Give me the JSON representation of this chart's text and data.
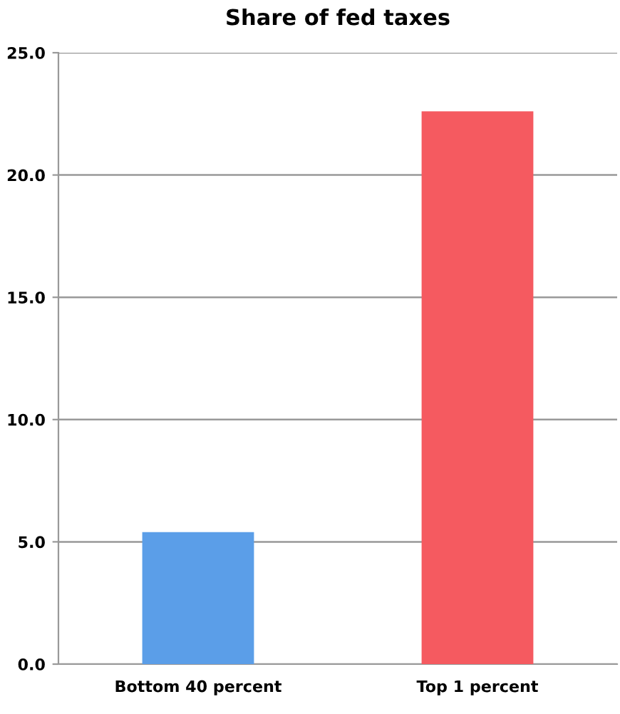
{
  "chart_data": {
    "type": "bar",
    "title": "Share of fed taxes",
    "categories": [
      "Bottom 40 percent",
      "Top 1 percent"
    ],
    "values": [
      5.4,
      22.6
    ],
    "colors": [
      "#5b9ee8",
      "#f55a60"
    ],
    "ylim": [
      0,
      25
    ],
    "yticks": [
      {
        "value": 0,
        "label": "0.0"
      },
      {
        "value": 5,
        "label": "5.0"
      },
      {
        "value": 10,
        "label": "10.0"
      },
      {
        "value": 15,
        "label": "15.0"
      },
      {
        "value": 20,
        "label": "20.0"
      },
      {
        "value": 25,
        "label": "25.0"
      }
    ],
    "grid": "y"
  }
}
